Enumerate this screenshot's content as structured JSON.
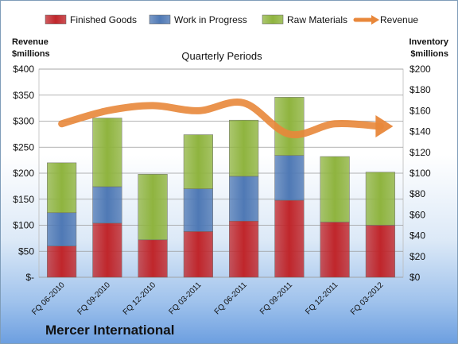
{
  "chart_data": {
    "type": "bar",
    "stacked": true,
    "title": "Quarterly Periods",
    "company": "Mercer International",
    "ylabel_left": [
      "Revenue",
      "$millions"
    ],
    "ylabel_right": [
      "Inventory",
      "$millions"
    ],
    "categories": [
      "FQ 06-2010",
      "FQ 09-2010",
      "FQ 12-2010",
      "FQ 03-2011",
      "FQ 06-2011",
      "FQ 09-2011",
      "FQ 12-2011",
      "FQ 03-2012"
    ],
    "left_ticks": [
      "$-",
      "$50",
      "$100",
      "$150",
      "$200",
      "$250",
      "$300",
      "$350",
      "$400"
    ],
    "right_ticks": [
      "$0",
      "$20",
      "$40",
      "$60",
      "$80",
      "$100",
      "$120",
      "$140",
      "$160",
      "$180",
      "$200"
    ],
    "ylim_left": [
      0,
      400
    ],
    "ylim_right": [
      0,
      200
    ],
    "series": [
      {
        "name": "Finished Goods",
        "axis": "right",
        "color": "#c0262b",
        "values": [
          30,
          52,
          36,
          44,
          54,
          74,
          53,
          50
        ]
      },
      {
        "name": "Work in Progress",
        "axis": "right",
        "color": "#4f79b5",
        "values": [
          32,
          35,
          0,
          41,
          43,
          43,
          0,
          0
        ]
      },
      {
        "name": "Raw Materials",
        "axis": "right",
        "color": "#8fb43f",
        "values": [
          48,
          66,
          63,
          52,
          54,
          56,
          63,
          51
        ]
      },
      {
        "name": "Revenue",
        "axis": "left",
        "type": "line",
        "color": "#e8873a",
        "values": [
          295,
          320,
          330,
          320,
          335,
          275,
          295,
          290
        ]
      }
    ],
    "grid": true,
    "legend_position": "top"
  }
}
